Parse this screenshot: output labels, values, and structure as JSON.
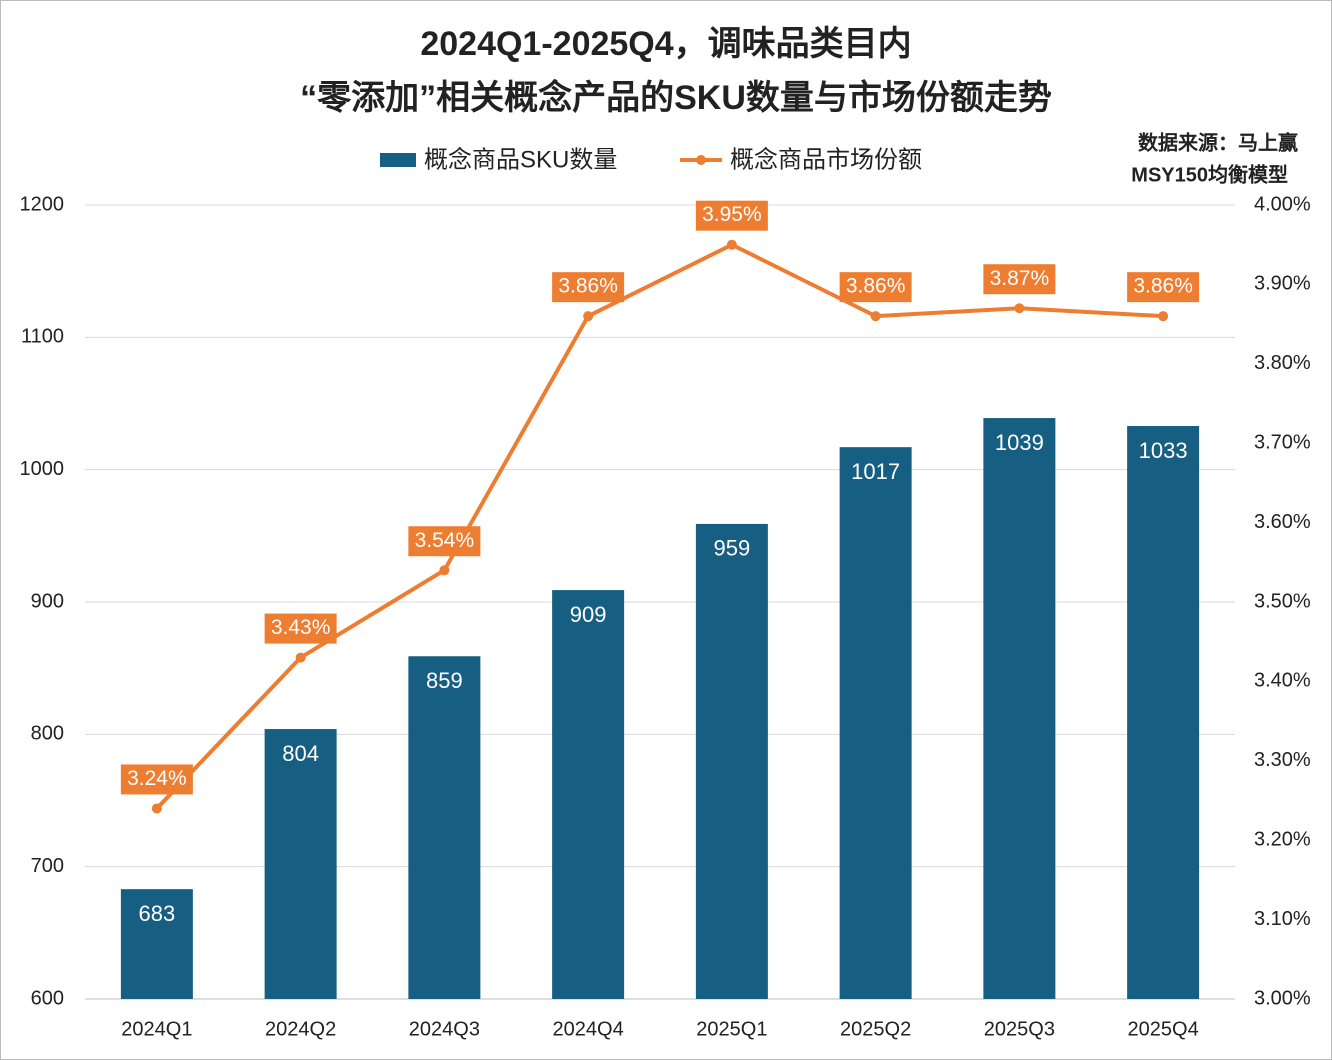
{
  "chart_data": {
    "type": "bar_line",
    "title": "2024Q1-2025Q4，调味品类目内",
    "subtitle": "“零添加”相关概念产品的SKU数量与市场份额走势",
    "source": [
      "数据来源：马上赢",
      "MSY150均衡模型"
    ],
    "categories": [
      "2024Q1",
      "2024Q2",
      "2024Q3",
      "2024Q4",
      "2025Q1",
      "2025Q2",
      "2025Q3",
      "2025Q4"
    ],
    "series": [
      {
        "name": "概念商品SKU数量",
        "type": "bar",
        "color": "#175f82",
        "values": [
          683,
          804,
          859,
          909,
          959,
          1017,
          1039,
          1033
        ]
      },
      {
        "name": "概念商品市场份额",
        "type": "line",
        "axis": "y2",
        "color": "#ed7d31",
        "values": [
          3.24,
          3.43,
          3.54,
          3.86,
          3.95,
          3.86,
          3.87,
          3.86
        ],
        "value_labels": [
          "3.24%",
          "3.43%",
          "3.54%",
          "3.86%",
          "3.95%",
          "3.86%",
          "3.87%",
          "3.86%"
        ]
      }
    ],
    "ylim": [
      600,
      1200
    ],
    "yticks": [
      600,
      700,
      800,
      900,
      1000,
      1100,
      1200
    ],
    "y2lim": [
      3,
      4
    ],
    "y2ticks": [
      {
        "value": 3.0,
        "label": "3.00%"
      },
      {
        "value": 3.1,
        "label": "3.10%"
      },
      {
        "value": 3.2,
        "label": "3.20%"
      },
      {
        "value": 3.3,
        "label": "3.30%"
      },
      {
        "value": 3.4,
        "label": "3.40%"
      },
      {
        "value": 3.5,
        "label": "3.50%"
      },
      {
        "value": 3.6,
        "label": "3.60%"
      },
      {
        "value": 3.7,
        "label": "3.70%"
      },
      {
        "value": 3.8,
        "label": "3.80%"
      },
      {
        "value": 3.9,
        "label": "3.90%"
      },
      {
        "value": 4.0,
        "label": "4.00%"
      }
    ],
    "grid": true
  }
}
